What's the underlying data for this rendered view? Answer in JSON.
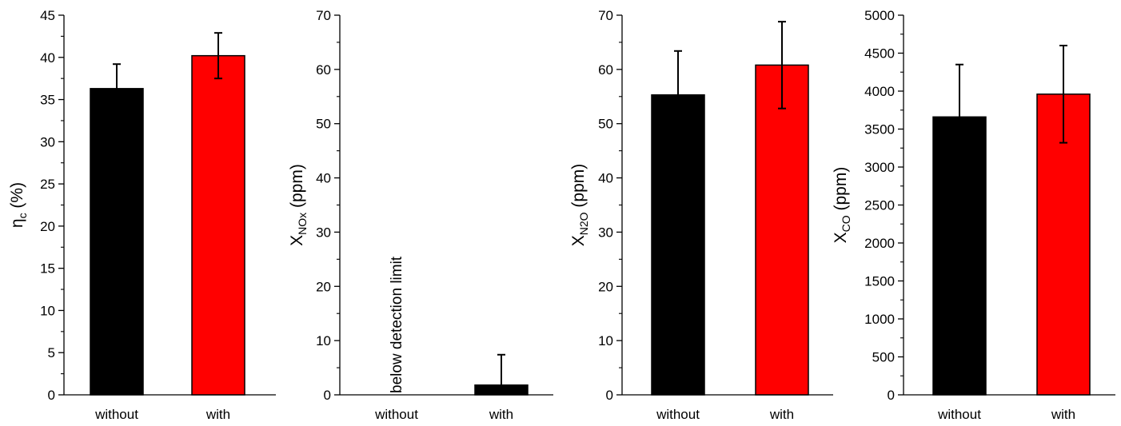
{
  "chart_data": [
    {
      "type": "bar",
      "categories": [
        "without",
        "with"
      ],
      "values": [
        36.3,
        40.2
      ],
      "errors": [
        2.9,
        2.7
      ],
      "bar_colors": [
        "#000000",
        "#ff0000"
      ],
      "ylabel": {
        "main": "η",
        "sub": "c",
        "suffix": " (%)"
      },
      "ylim": [
        0,
        45
      ],
      "yticks": [
        0,
        5,
        10,
        15,
        20,
        25,
        30,
        35,
        40,
        45
      ],
      "grid": false
    },
    {
      "type": "bar",
      "categories": [
        "without",
        "with"
      ],
      "values": [
        0,
        1.8
      ],
      "errors": [
        0,
        5.6
      ],
      "bar_colors": [
        "#000000",
        "#000000"
      ],
      "ylabel": {
        "main": "X",
        "sub": "NOx",
        "suffix": " (ppm)"
      },
      "ylim": [
        0,
        70
      ],
      "yticks": [
        0,
        10,
        20,
        30,
        40,
        50,
        60,
        70
      ],
      "annotation": "below detection limit",
      "grid": false
    },
    {
      "type": "bar",
      "categories": [
        "without",
        "with"
      ],
      "values": [
        55.3,
        60.8
      ],
      "errors": [
        8.1,
        8.0
      ],
      "bar_colors": [
        "#000000",
        "#ff0000"
      ],
      "ylabel": {
        "main": "X",
        "sub": "N2O",
        "suffix": " (ppm)"
      },
      "ylim": [
        0,
        70
      ],
      "yticks": [
        0,
        10,
        20,
        30,
        40,
        50,
        60,
        70
      ],
      "grid": false
    },
    {
      "type": "bar",
      "categories": [
        "without",
        "with"
      ],
      "values": [
        3660,
        3960
      ],
      "errors": [
        690,
        640
      ],
      "bar_colors": [
        "#000000",
        "#ff0000"
      ],
      "ylabel": {
        "main": "X",
        "sub": "CO",
        "suffix": " (ppm)"
      },
      "ylim": [
        0,
        5000
      ],
      "yticks": [
        0,
        500,
        1000,
        1500,
        2000,
        2500,
        3000,
        3500,
        4000,
        4500,
        5000
      ],
      "grid": false
    }
  ]
}
